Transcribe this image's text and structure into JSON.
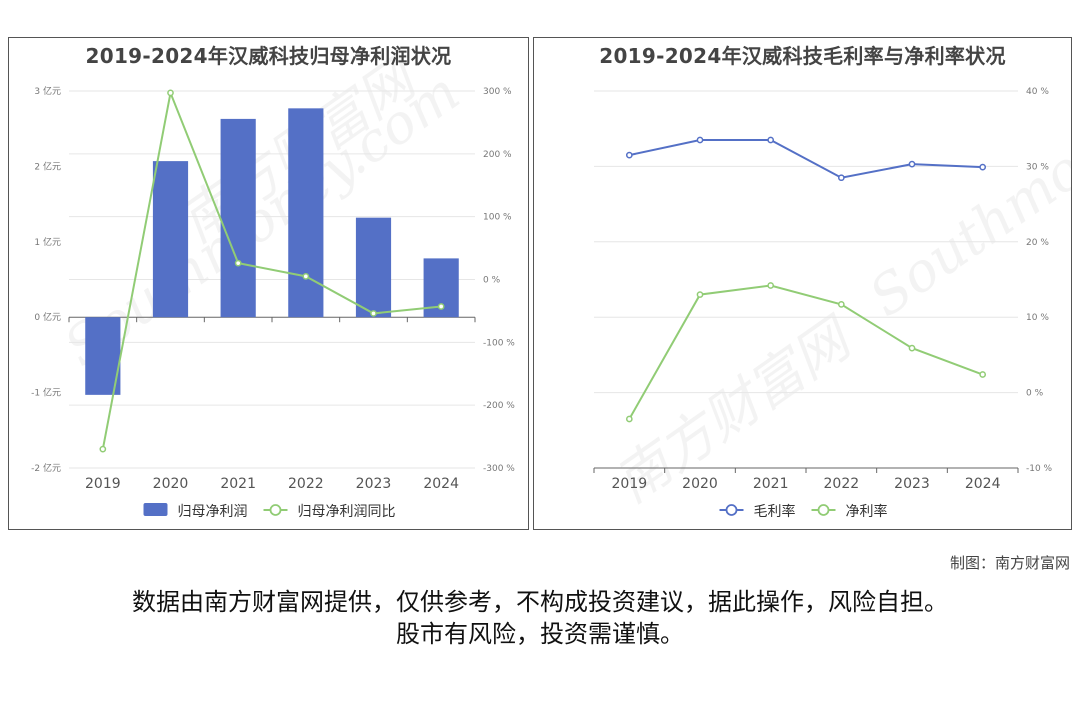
{
  "watermark": {
    "cn": "南方财富网",
    "en": "Southmoney.com"
  },
  "credit": "制图：南方财富网",
  "disclaimer": {
    "line1": "数据由南方财富网提供，仅供参考，不构成投资建议，据此操作，风险自担。",
    "line2": "股市有风险，投资需谨慎。"
  },
  "chart_data": [
    {
      "type": "bar",
      "title": "2019-2024年汉威科技归母净利润状况",
      "categories": [
        "2019",
        "2020",
        "2021",
        "2022",
        "2023",
        "2024"
      ],
      "series": [
        {
          "name": "归母净利润",
          "type": "bar",
          "axis": "left",
          "color": "#5470c6",
          "values": [
            -1.03,
            2.07,
            2.63,
            2.77,
            1.32,
            0.78
          ]
        },
        {
          "name": "归母净利润同比",
          "type": "line",
          "axis": "right",
          "color": "#91cc75",
          "values": [
            -270,
            297,
            26,
            5,
            -54,
            -43
          ]
        }
      ],
      "left_axis": {
        "ylim": [
          -2,
          3
        ],
        "ticks": [
          -2,
          -1,
          0,
          1,
          2,
          3
        ],
        "tick_labels": [
          "-2 亿元",
          "-1 亿元",
          "0 亿元",
          "1 亿元",
          "2 亿元",
          "3 亿元"
        ]
      },
      "right_axis": {
        "ylim": [
          -300,
          300
        ],
        "ticks": [
          -300,
          -200,
          -100,
          0,
          100,
          200,
          300
        ],
        "tick_labels": [
          "-300 %",
          "-200 %",
          "-100 %",
          "0 %",
          "100 %",
          "200 %",
          "300 %"
        ]
      },
      "legend": "bottom-center",
      "grid": true
    },
    {
      "type": "line",
      "title": "2019-2024年汉威科技毛利率与净利率状况",
      "categories": [
        "2019",
        "2020",
        "2021",
        "2022",
        "2023",
        "2024"
      ],
      "series": [
        {
          "name": "毛利率",
          "color": "#5470c6",
          "values": [
            31.5,
            33.5,
            33.5,
            28.5,
            30.3,
            29.9
          ]
        },
        {
          "name": "净利率",
          "color": "#91cc75",
          "values": [
            -3.5,
            13.0,
            14.2,
            11.7,
            5.9,
            2.4
          ]
        }
      ],
      "right_axis": {
        "ylim": [
          -10,
          40
        ],
        "ticks": [
          -10,
          0,
          10,
          20,
          30,
          40
        ],
        "tick_labels": [
          "-10 %",
          "0 %",
          "10 %",
          "20 %",
          "30 %",
          "40 %"
        ]
      },
      "legend": "bottom-center",
      "grid": true
    }
  ]
}
